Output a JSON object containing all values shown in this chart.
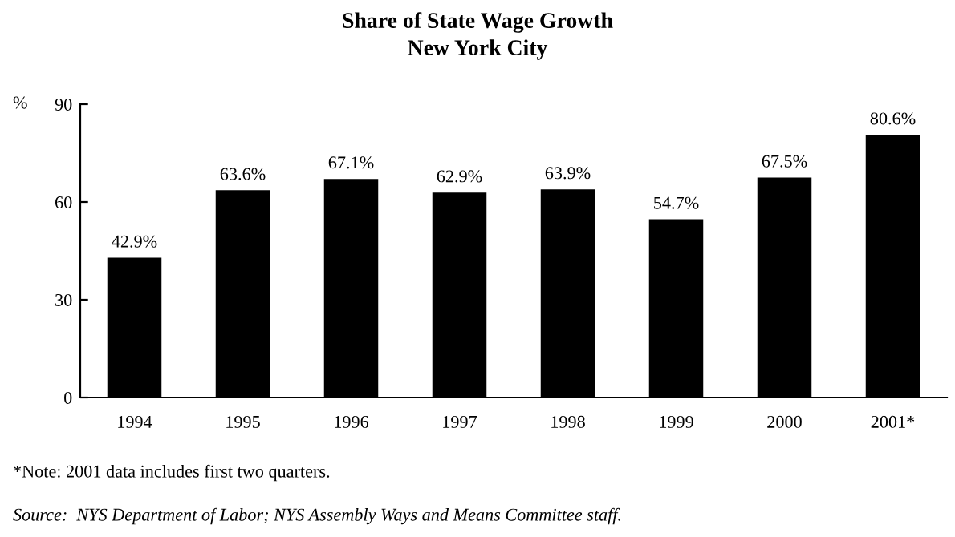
{
  "chart_data": {
    "type": "bar",
    "title": "Share of State Wage Growth",
    "subtitle": "New York City",
    "ylabel": "%",
    "categories": [
      "1994",
      "1995",
      "1996",
      "1997",
      "1998",
      "1999",
      "2000",
      "2001*"
    ],
    "values": [
      42.9,
      63.6,
      67.1,
      62.9,
      63.9,
      54.7,
      67.5,
      80.6
    ],
    "value_labels": [
      "42.9%",
      "63.6%",
      "67.1%",
      "62.9%",
      "63.9%",
      "54.7%",
      "67.5%",
      "80.6%"
    ],
    "color": "#000000",
    "ylim": [
      0,
      90
    ],
    "yticks": [
      0,
      30,
      60,
      90
    ],
    "grid": false,
    "legend": false,
    "annotations": [
      "*Note: 2001 data includes first two quarters.",
      "Source:  NYS Department of Labor; NYS Assembly Ways and Means Committee staff."
    ]
  }
}
